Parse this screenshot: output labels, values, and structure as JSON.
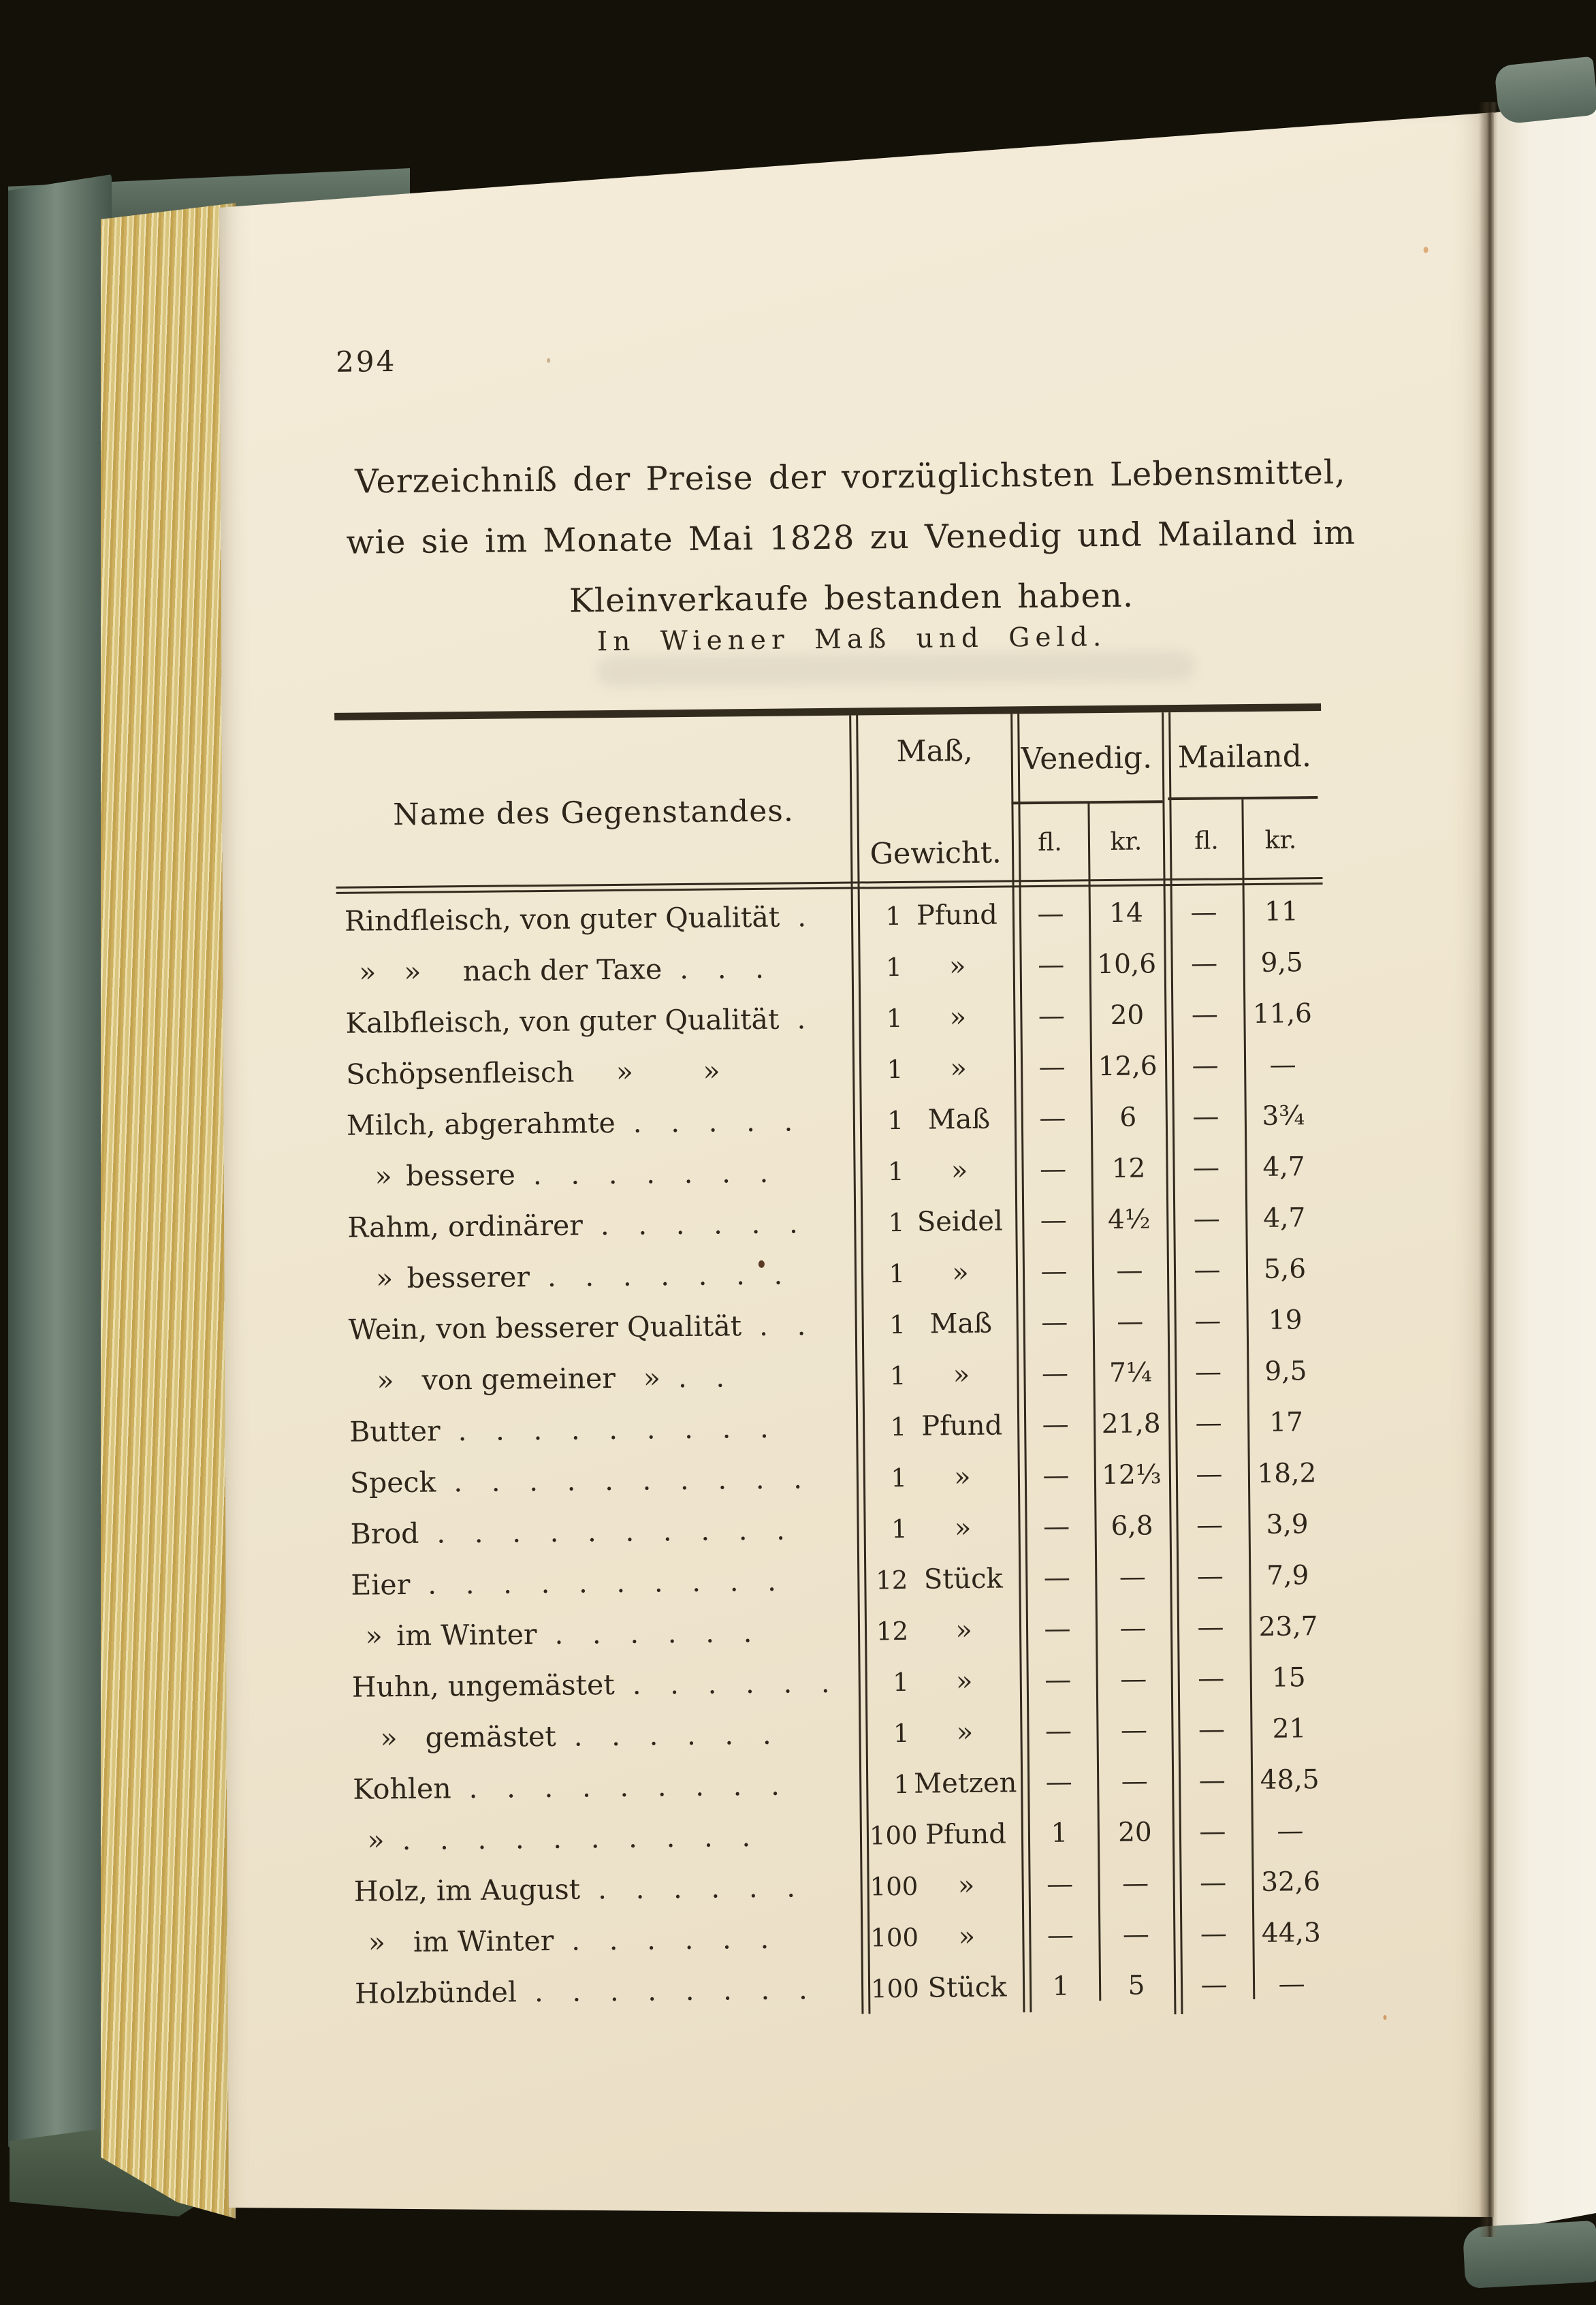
{
  "page": {
    "number": "294",
    "title_lines": [
      "Verzeichniß der Preise der vorzüglichsten Lebensmittel,",
      "wie sie im Monate Mai 1828 zu Venedig und Mailand im",
      "Kleinverkaufe bestanden haben."
    ],
    "subtitle": "In Wiener Maß und Geld."
  },
  "table": {
    "headers": {
      "name": "Name des Gegenstandes.",
      "measure": [
        "Maß,",
        "Gewicht."
      ],
      "venice": "Venedig.",
      "milan": "Mailand.",
      "fl": "fl.",
      "kr": "kr."
    },
    "rows": [
      {
        "name": "Rindfleisch, von guter Qualität",
        "dots": ".",
        "qty": "1",
        "unit": "Pfund",
        "v_fl": "—",
        "v_kr": "14",
        "m_fl": "—",
        "m_kr": "11"
      },
      {
        "name": " » »  nach der Taxe",
        "dots": ". . .",
        "qty": "1",
        "unit": "»",
        "v_fl": "—",
        "v_kr": "10,6",
        "m_fl": "—",
        "m_kr": "9,5"
      },
      {
        "name": "Kalbfleisch, von guter Qualität",
        "dots": ".",
        "qty": "1",
        "unit": "»",
        "v_fl": "—",
        "v_kr": "20",
        "m_fl": "—",
        "m_kr": "11,6"
      },
      {
        "name": "Schöpsenfleisch  »   »",
        "dots": "",
        "qty": "1",
        "unit": "»",
        "v_fl": "—",
        "v_kr": "12,6",
        "m_fl": "—",
        "m_kr": "—"
      },
      {
        "name": "Milch, abgerahmte",
        "dots": ". . . . .",
        "qty": "1",
        "unit": "Maß",
        "v_fl": "—",
        "v_kr": "6",
        "m_fl": "—",
        "m_kr": "3¾"
      },
      {
        "name": " » bessere",
        "dots": ". . . . . . .",
        "qty": "1",
        "unit": "»",
        "v_fl": "—",
        "v_kr": "12",
        "m_fl": "—",
        "m_kr": "4,7"
      },
      {
        "name": "Rahm, ordinärer",
        "dots": ". . . . . .",
        "qty": "1",
        "unit": "Seidel",
        "v_fl": "—",
        "v_kr": "4½",
        "m_fl": "—",
        "m_kr": "4,7"
      },
      {
        "name": " » besserer",
        "dots": ". . . . . . .",
        "qty": "1",
        "unit": "»",
        "v_fl": "—",
        "v_kr": "—",
        "m_fl": "—",
        "m_kr": "5,6"
      },
      {
        "name": "Wein, von besserer Qualität",
        "dots": ". .",
        "qty": "1",
        "unit": "Maß",
        "v_fl": "—",
        "v_kr": "—",
        "m_fl": "—",
        "m_kr": "19"
      },
      {
        "name": " » von gemeiner »",
        "dots": ". .",
        "qty": "1",
        "unit": "»",
        "v_fl": "—",
        "v_kr": "7¼",
        "m_fl": "—",
        "m_kr": "9,5"
      },
      {
        "name": "Butter",
        "dots": ". . . . . . . . .",
        "qty": "1",
        "unit": "Pfund",
        "v_fl": "—",
        "v_kr": "21,8",
        "m_fl": "—",
        "m_kr": "17"
      },
      {
        "name": "Speck",
        "dots": ". . . . . . . . . .",
        "qty": "1",
        "unit": "»",
        "v_fl": "—",
        "v_kr": "12⅓",
        "m_fl": "—",
        "m_kr": "18,2"
      },
      {
        "name": "Brod",
        "dots": ". . . . . . . . . .",
        "qty": "1",
        "unit": "»",
        "v_fl": "—",
        "v_kr": "6,8",
        "m_fl": "—",
        "m_kr": "3,9"
      },
      {
        "name": "Eier",
        "dots": ". . . . . . . . . .",
        "qty": "12",
        "unit": "Stück",
        "v_fl": "—",
        "v_kr": "—",
        "m_fl": "—",
        "m_kr": "7,9"
      },
      {
        "name": " » im Winter",
        "dots": ". . . . . .",
        "qty": "12",
        "unit": "»",
        "v_fl": "—",
        "v_kr": "—",
        "m_fl": "—",
        "m_kr": "23,7"
      },
      {
        "name": "Huhn, ungemästet",
        "dots": ". . . . . .",
        "qty": "1",
        "unit": "»",
        "v_fl": "—",
        "v_kr": "—",
        "m_fl": "—",
        "m_kr": "15"
      },
      {
        "name": " » gemästet",
        "dots": ". . . . . .",
        "qty": "1",
        "unit": "»",
        "v_fl": "—",
        "v_kr": "—",
        "m_fl": "—",
        "m_kr": "21"
      },
      {
        "name": "Kohlen",
        "dots": ". . . . . . . . .",
        "qty": "1",
        "unit": "Metzen",
        "v_fl": "—",
        "v_kr": "—",
        "m_fl": "—",
        "m_kr": "48,5"
      },
      {
        "name": " »",
        "dots": ". . . . . . . . . .",
        "qty": "100",
        "unit": "Pfund",
        "v_fl": "1",
        "v_kr": "20",
        "m_fl": "—",
        "m_kr": "—"
      },
      {
        "name": "Holz, im August",
        "dots": ". . . . . .",
        "qty": "100",
        "unit": "»",
        "v_fl": "—",
        "v_kr": "—",
        "m_fl": "—",
        "m_kr": "32,6"
      },
      {
        "name": " » im Winter",
        "dots": ". . . . . .",
        "qty": "100",
        "unit": "»",
        "v_fl": "—",
        "v_kr": "—",
        "m_fl": "—",
        "m_kr": "44,3"
      },
      {
        "name": "Holzbündel",
        "dots": ". . . . . . . .",
        "qty": "100",
        "unit": "Stück",
        "v_fl": "1",
        "v_kr": "5",
        "m_fl": "—",
        "m_kr": "—"
      }
    ]
  },
  "colors": {
    "ink": "#2e261b",
    "rule": "#342b1f",
    "paper": "#f0e7d1",
    "cover": "#5d6f63",
    "bg": "#141109"
  }
}
